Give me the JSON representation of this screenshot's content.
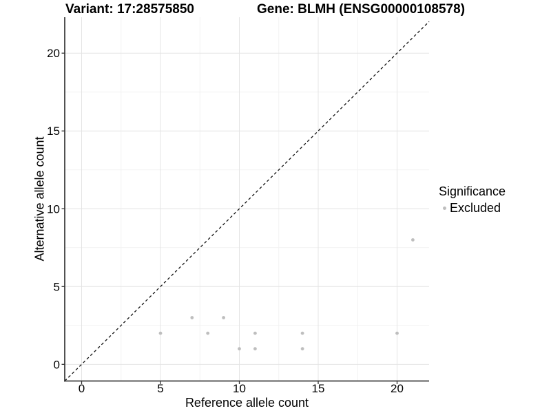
{
  "header": {
    "variant_title": "Variant: 17:28575850",
    "gene_title": "Gene: BLMH (ENSG00000108578)"
  },
  "chart_data": {
    "type": "scatter",
    "title_left": "Variant: 17:28575850",
    "title_right": "Gene: BLMH (ENSG00000108578)",
    "xlabel": "Reference allele count",
    "ylabel": "Alternative allele count",
    "x_ticks": [
      0,
      5,
      10,
      15,
      20
    ],
    "y_ticks": [
      0,
      5,
      10,
      15,
      20
    ],
    "x_minor_ticks": [
      2.5,
      7.5,
      12.5,
      17.5
    ],
    "y_minor_ticks": [
      2.5,
      7.5,
      12.5,
      17.5
    ],
    "xlim": [
      -1.07,
      22.03
    ],
    "ylim": [
      -1.07,
      22.31
    ],
    "grid": "major+minor",
    "identity_line": {
      "slope": 1,
      "intercept": 0,
      "style": "dashed",
      "color": "#111111"
    },
    "series": [
      {
        "name": "Excluded",
        "color": "#bebebe",
        "points": [
          [
            5,
            2
          ],
          [
            7,
            3
          ],
          [
            8,
            2
          ],
          [
            9,
            3
          ],
          [
            10,
            1
          ],
          [
            11,
            1
          ],
          [
            11,
            2
          ],
          [
            14,
            1
          ],
          [
            14,
            2
          ],
          [
            20,
            2
          ],
          [
            21,
            8
          ]
        ]
      }
    ],
    "legend": {
      "title": "Significance",
      "position": "right",
      "items": [
        {
          "label": "Excluded",
          "color": "#bebebe"
        }
      ]
    }
  },
  "colors": {
    "background": "#ffffff",
    "grid_major": "#e4e4e4",
    "grid_minor": "#f2f2f2",
    "axis_line": "#3f3f3f",
    "tick_mark": "#333333",
    "point": "#bebebe",
    "text": "#000000"
  }
}
